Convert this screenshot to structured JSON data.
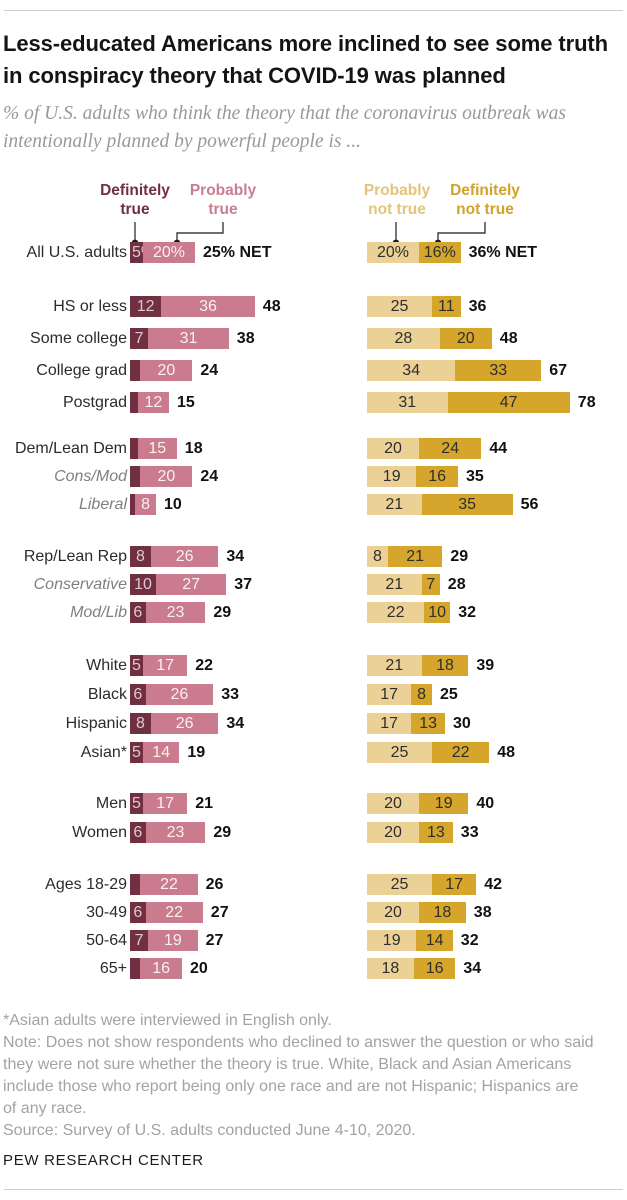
{
  "chart_data": {
    "type": "bar",
    "orientation": "horizontal",
    "stacked": true,
    "unit": "percent",
    "grid": false,
    "legend_position": "top",
    "title": "Less-educated Americans more inclined to see some truth in conspiracy theory that COVID-19 was planned",
    "subtitle": "% of U.S. adults who think the theory that the coronavirus outbreak was intentionally planned by powerful people is ...",
    "legend": [
      {
        "name": "definitely-true",
        "line1": "Definitely",
        "line2": "true",
        "bar_color": "#712F42",
        "text_color": "#722F42"
      },
      {
        "name": "probably-true",
        "line1": "Probably",
        "line2": "true",
        "bar_color": "#CA7B8D",
        "text_color": "#C97E90"
      },
      {
        "name": "probably-not-true",
        "line1": "Probably",
        "line2": "not true",
        "bar_color": "#ECD196",
        "text_color": "#E3C478"
      },
      {
        "name": "definitely-not-true",
        "line1": "Definitely",
        "line2": "not true",
        "bar_color": "#D5A62B",
        "text_color": "#D2A32A"
      }
    ],
    "series_names": [
      "Definitely true",
      "Probably true",
      "Probably not true",
      "Definitely not true"
    ],
    "sections": [
      {
        "rows": [
          {
            "label": "All U.S. adults",
            "italic": false,
            "dt": 5,
            "pt": 20,
            "dt_label": "5%",
            "pt_label": "20%",
            "net_true": "25% NET",
            "pnt": 20,
            "dnt": 16,
            "pnt_label": "20%",
            "dnt_label": "16%",
            "net_not_true": "36% NET"
          }
        ]
      },
      {
        "rows": [
          {
            "label": "HS or less",
            "italic": false,
            "dt": 12,
            "pt": 36,
            "dt_label": "12",
            "pt_label": "36",
            "net_true": "48",
            "pnt": 25,
            "dnt": 11,
            "pnt_label": "25",
            "dnt_label": "11",
            "net_not_true": "36"
          },
          {
            "label": "Some college",
            "italic": false,
            "dt": 7,
            "pt": 31,
            "dt_label": "7",
            "pt_label": "31",
            "net_true": "38",
            "pnt": 28,
            "dnt": 20,
            "pnt_label": "28",
            "dnt_label": "20",
            "net_not_true": "48"
          },
          {
            "label": "College grad",
            "italic": false,
            "dt": 4,
            "pt": 20,
            "dt_label": "",
            "pt_label": "20",
            "net_true": "24",
            "pnt": 34,
            "dnt": 33,
            "pnt_label": "34",
            "dnt_label": "33",
            "net_not_true": "67"
          },
          {
            "label": "Postgrad",
            "italic": false,
            "dt": 3,
            "pt": 12,
            "dt_label": "",
            "pt_label": "12",
            "net_true": "15",
            "pnt": 31,
            "dnt": 47,
            "pnt_label": "31",
            "dnt_label": "47",
            "net_not_true": "78"
          }
        ]
      },
      {
        "rows": [
          {
            "label": "Dem/Lean Dem",
            "italic": false,
            "dt": 3,
            "pt": 15,
            "dt_label": "",
            "pt_label": "15",
            "net_true": "18",
            "pnt": 20,
            "dnt": 24,
            "pnt_label": "20",
            "dnt_label": "24",
            "net_not_true": "44"
          },
          {
            "label": "Cons/Mod",
            "italic": true,
            "dt": 4,
            "pt": 20,
            "dt_label": "",
            "pt_label": "20",
            "net_true": "24",
            "pnt": 19,
            "dnt": 16,
            "pnt_label": "19",
            "dnt_label": "16",
            "net_not_true": "35"
          },
          {
            "label": "Liberal",
            "italic": true,
            "dt": 2,
            "pt": 8,
            "dt_label": "",
            "pt_label": "8",
            "net_true": "10",
            "pnt": 21,
            "dnt": 35,
            "pnt_label": "21",
            "dnt_label": "35",
            "net_not_true": "56"
          }
        ]
      },
      {
        "rows": [
          {
            "label": "Rep/Lean Rep",
            "italic": false,
            "dt": 8,
            "pt": 26,
            "dt_label": "8",
            "pt_label": "26",
            "net_true": "34",
            "pnt": 8,
            "dnt": 21,
            "pnt_label": "8",
            "dnt_label": "21",
            "net_not_true": "29"
          },
          {
            "label": "Conservative",
            "italic": true,
            "dt": 10,
            "pt": 27,
            "dt_label": "10",
            "pt_label": "27",
            "net_true": "37",
            "pnt": 21,
            "dnt": 7,
            "pnt_label": "21",
            "dnt_label": "7",
            "net_not_true": "28"
          },
          {
            "label": "Mod/Lib",
            "italic": true,
            "dt": 6,
            "pt": 23,
            "dt_label": "6",
            "pt_label": "23",
            "net_true": "29",
            "pnt": 22,
            "dnt": 10,
            "pnt_label": "22",
            "dnt_label": "10",
            "net_not_true": "32"
          }
        ]
      },
      {
        "rows": [
          {
            "label": "White",
            "italic": false,
            "dt": 5,
            "pt": 17,
            "dt_label": "5",
            "pt_label": "17",
            "net_true": "22",
            "pnt": 21,
            "dnt": 18,
            "pnt_label": "21",
            "dnt_label": "18",
            "net_not_true": "39"
          },
          {
            "label": "Black",
            "italic": false,
            "dt": 6,
            "pt": 26,
            "dt_label": "6",
            "pt_label": "26",
            "net_true": "33",
            "pnt": 17,
            "dnt": 8,
            "pnt_label": "17",
            "dnt_label": "8",
            "net_not_true": "25"
          },
          {
            "label": "Hispanic",
            "italic": false,
            "dt": 8,
            "pt": 26,
            "dt_label": "8",
            "pt_label": "26",
            "net_true": "34",
            "pnt": 17,
            "dnt": 13,
            "pnt_label": "17",
            "dnt_label": "13",
            "net_not_true": "30"
          },
          {
            "label": "Asian*",
            "italic": false,
            "dt": 5,
            "pt": 14,
            "dt_label": "5",
            "pt_label": "14",
            "net_true": "19",
            "pnt": 25,
            "dnt": 22,
            "pnt_label": "25",
            "dnt_label": "22",
            "net_not_true": "48"
          }
        ]
      },
      {
        "rows": [
          {
            "label": "Men",
            "italic": false,
            "dt": 5,
            "pt": 17,
            "dt_label": "5",
            "pt_label": "17",
            "net_true": "21",
            "pnt": 20,
            "dnt": 19,
            "pnt_label": "20",
            "dnt_label": "19",
            "net_not_true": "40"
          },
          {
            "label": "Women",
            "italic": false,
            "dt": 6,
            "pt": 23,
            "dt_label": "6",
            "pt_label": "23",
            "net_true": "29",
            "pnt": 20,
            "dnt": 13,
            "pnt_label": "20",
            "dnt_label": "13",
            "net_not_true": "33"
          }
        ]
      },
      {
        "rows": [
          {
            "label": "Ages 18-29",
            "italic": false,
            "dt": 4,
            "pt": 22,
            "dt_label": "",
            "pt_label": "22",
            "net_true": "26",
            "pnt": 25,
            "dnt": 17,
            "pnt_label": "25",
            "dnt_label": "17",
            "net_not_true": "42"
          },
          {
            "label": "30-49",
            "italic": false,
            "dt": 6,
            "pt": 22,
            "dt_label": "6",
            "pt_label": "22",
            "net_true": "27",
            "pnt": 20,
            "dnt": 18,
            "pnt_label": "20",
            "dnt_label": "18",
            "net_not_true": "38"
          },
          {
            "label": "50-64",
            "italic": false,
            "dt": 7,
            "pt": 19,
            "dt_label": "7",
            "pt_label": "19",
            "net_true": "27",
            "pnt": 19,
            "dnt": 14,
            "pnt_label": "19",
            "dnt_label": "14",
            "net_not_true": "32"
          },
          {
            "label": "65+",
            "italic": false,
            "dt": 4,
            "pt": 16,
            "dt_label": "",
            "pt_label": "16",
            "net_true": "20",
            "pnt": 18,
            "dnt": 16,
            "pnt_label": "18",
            "dnt_label": "16",
            "net_not_true": "34"
          }
        ]
      }
    ]
  },
  "footer": {
    "note_asterisk": "*Asian adults were interviewed in English only.",
    "note": "Note: Does not show respondents who declined to answer the question or who said they were not sure whether the theory is true. White, Black and Asian Americans include those who report being only one race and are not Hispanic; Hispanics are of any race.",
    "source": "Source: Survey of U.S. adults conducted June 4-10, 2020.",
    "brand": "PEW RESEARCH CENTER"
  }
}
